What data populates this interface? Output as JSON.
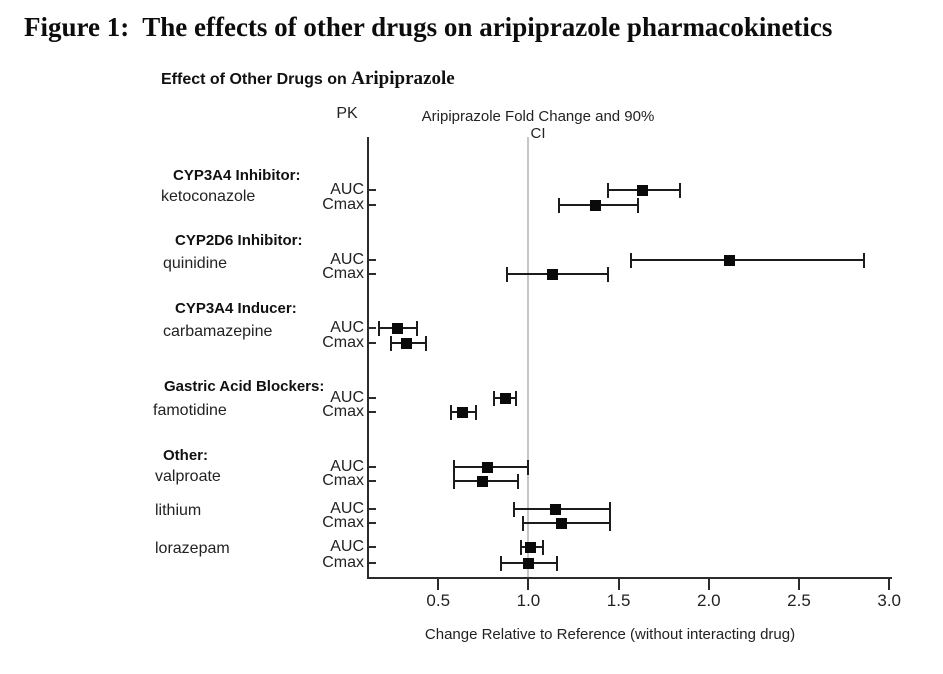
{
  "figure_title": "Figure 1:  The effects of other drugs on aripiprazole pharmacokinetics",
  "chart_data": {
    "type": "forest",
    "title": "Effect of Other Drugs on Aripiprazole",
    "title_part_bold": "Effect of Other Drugs on ",
    "title_part_serif": "Aripiprazole",
    "pk_header": "PK",
    "ci_header": "Aripiprazole Fold Change and 90% CI",
    "xlabel": "Change Relative to Reference (without interacting drug)",
    "x_tick_labels": [
      "0.5",
      "1.0",
      "1.5",
      "2.0",
      "2.5",
      "3.0"
    ],
    "x_tick_values": [
      0.5,
      1.0,
      1.5,
      2.0,
      2.5,
      3.0
    ],
    "xlim": [
      0.105,
      3.01
    ],
    "reference_value": 1.0,
    "grid": false,
    "legend": false,
    "groups": [
      {
        "header": "CYP3A4 Inhibitor:",
        "drug": "ketoconazole",
        "rows": [
          {
            "metric": "AUC",
            "estimate": 1.63,
            "ci_low": 1.44,
            "ci_high": 1.84
          },
          {
            "metric": "Cmax",
            "estimate": 1.37,
            "ci_low": 1.17,
            "ci_high": 1.61
          }
        ]
      },
      {
        "header": "CYP2D6 Inhibitor:",
        "drug": "quinidine",
        "rows": [
          {
            "metric": "AUC",
            "estimate": 2.11,
            "ci_low": 1.57,
            "ci_high": 2.86
          },
          {
            "metric": "Cmax",
            "estimate": 1.13,
            "ci_low": 0.88,
            "ci_high": 1.44
          }
        ]
      },
      {
        "header": "CYP3A4 Inducer:",
        "drug": "carbamazepine",
        "rows": [
          {
            "metric": "AUC",
            "estimate": 0.27,
            "ci_low": 0.17,
            "ci_high": 0.38
          },
          {
            "metric": "Cmax",
            "estimate": 0.32,
            "ci_low": 0.24,
            "ci_high": 0.43
          }
        ]
      },
      {
        "header": "Gastric Acid Blockers:",
        "drug": "famotidine",
        "rows": [
          {
            "metric": "AUC",
            "estimate": 0.87,
            "ci_low": 0.81,
            "ci_high": 0.93
          },
          {
            "metric": "Cmax",
            "estimate": 0.63,
            "ci_low": 0.57,
            "ci_high": 0.71
          }
        ]
      },
      {
        "header": "Other:",
        "drug": "valproate",
        "rows": [
          {
            "metric": "AUC",
            "estimate": 0.77,
            "ci_low": 0.59,
            "ci_high": 1.0
          },
          {
            "metric": "Cmax",
            "estimate": 0.74,
            "ci_low": 0.59,
            "ci_high": 0.94
          }
        ]
      },
      {
        "header": "",
        "drug": "lithium",
        "rows": [
          {
            "metric": "AUC",
            "estimate": 1.15,
            "ci_low": 0.92,
            "ci_high": 1.45
          },
          {
            "metric": "Cmax",
            "estimate": 1.18,
            "ci_low": 0.97,
            "ci_high": 1.45
          }
        ]
      },
      {
        "header": "",
        "drug": "lorazepam",
        "rows": [
          {
            "metric": "AUC",
            "estimate": 1.01,
            "ci_low": 0.96,
            "ci_high": 1.08
          },
          {
            "metric": "Cmax",
            "estimate": 1.0,
            "ci_low": 0.85,
            "ci_high": 1.16
          }
        ]
      }
    ],
    "colors": {
      "marker": "#0a0a0a",
      "ci_line": "#1c1c1c",
      "axis": "#2b2b2b",
      "reference_line": "#c6c6c6",
      "text": "#1a1a1a"
    }
  }
}
